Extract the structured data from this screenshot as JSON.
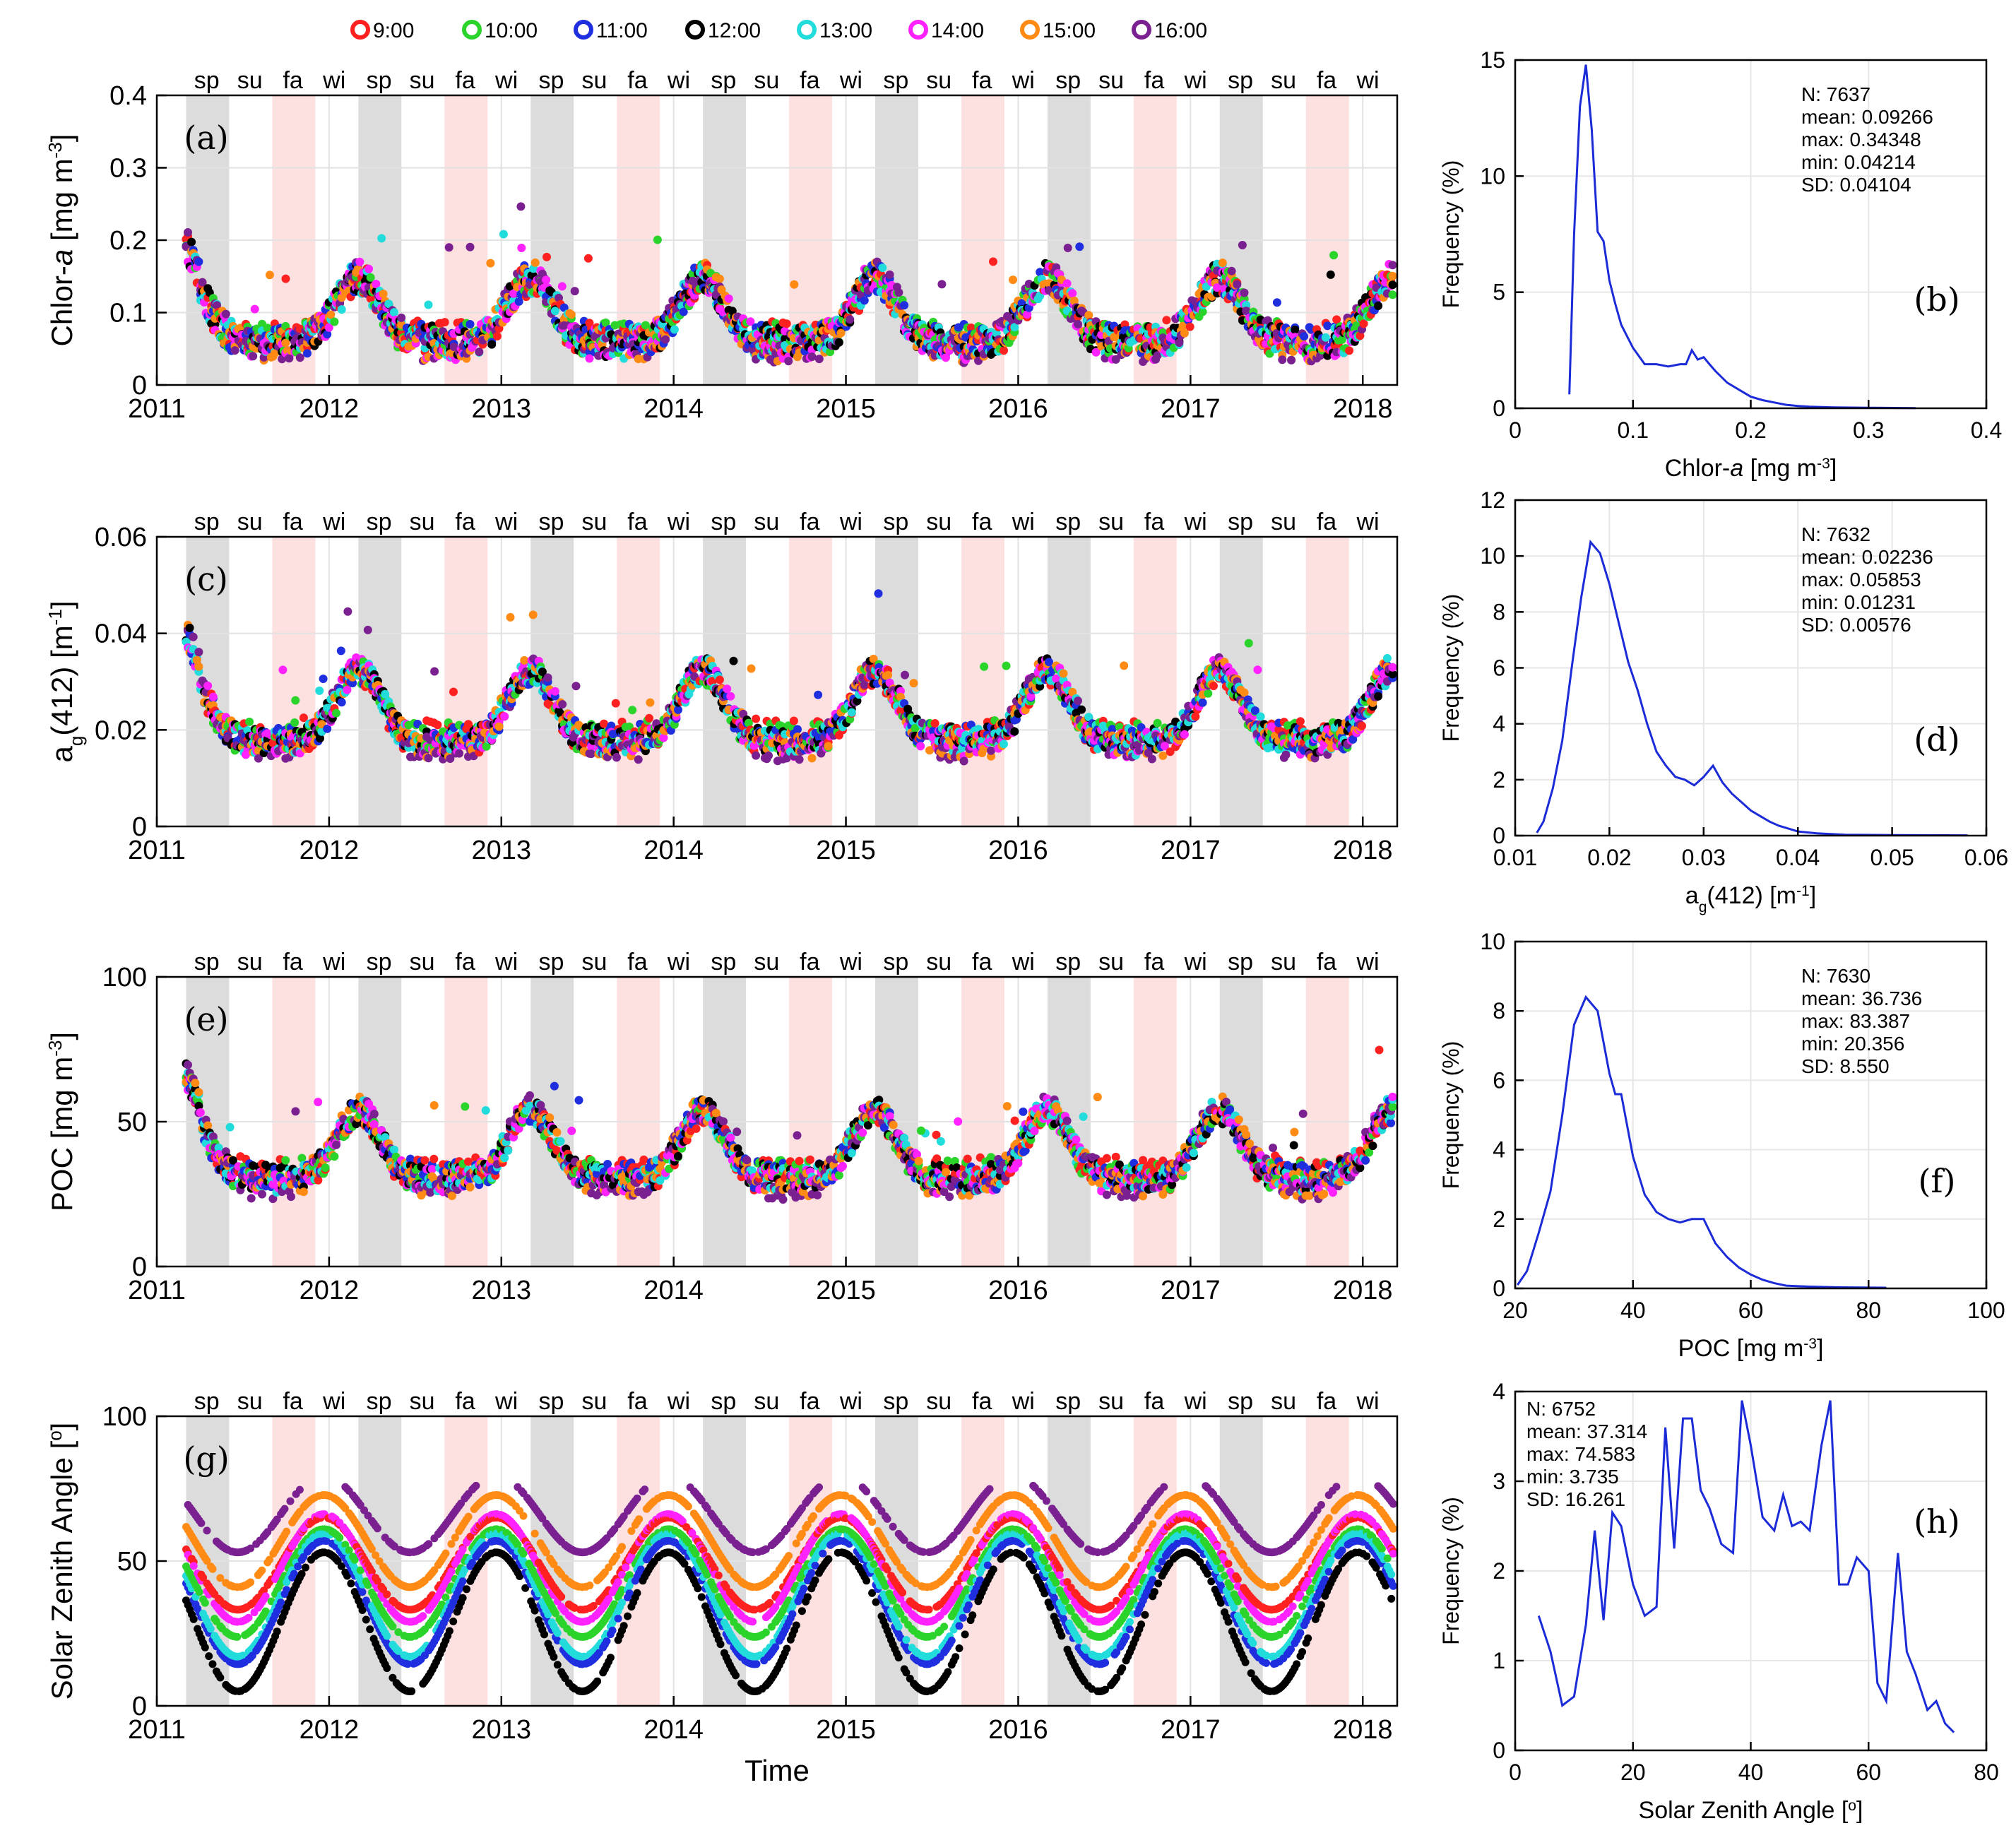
{
  "legend": [
    {
      "label": "9:00",
      "color": "#ff2020"
    },
    {
      "label": "10:00",
      "color": "#2ad42a"
    },
    {
      "label": "11:00",
      "color": "#1f2fe0"
    },
    {
      "label": "12:00",
      "color": "#000000"
    },
    {
      "label": "13:00",
      "color": "#22dcdc"
    },
    {
      "label": "14:00",
      "color": "#ff22ff"
    },
    {
      "label": "15:00",
      "color": "#ff8a14"
    },
    {
      "label": "16:00",
      "color": "#7a2090"
    }
  ],
  "season_labels": [
    "sp",
    "su",
    "fa",
    "wi",
    "sp",
    "su",
    "fa",
    "wi",
    "sp",
    "su",
    "fa",
    "wi",
    "sp",
    "su",
    "fa",
    "wi",
    "sp",
    "su",
    "fa",
    "wi",
    "sp",
    "su",
    "fa",
    "wi",
    "sp",
    "su",
    "fa",
    "wi"
  ],
  "time_axis": {
    "xlim": [
      2011.0,
      2018.2
    ],
    "ticks": [
      2011,
      2012,
      2013,
      2014,
      2015,
      2016,
      2017,
      2018
    ],
    "tick_labels": [
      "2011",
      "2012",
      "2013",
      "2014",
      "2015",
      "2016",
      "2017",
      "2018"
    ],
    "xlabel": "Time",
    "spring_fraction": [
      0.17,
      0.42
    ],
    "fall_fraction": [
      0.67,
      0.92
    ],
    "spring_color": "#dcdcdc",
    "fall_color": "#fde0e0"
  },
  "chart_data": [
    {
      "id": "a",
      "panel_label": "(a)",
      "type": "scatter",
      "ylabel_main": "Chlor-",
      "ylabel_italic": "a",
      "ylabel_unit": " [mg m",
      "ylabel_sup": "-3",
      "ylabel_end": "]",
      "ylim": [
        0,
        0.4
      ],
      "yticks": [
        0,
        0.1,
        0.2,
        0.3,
        0.4
      ],
      "ytick_labels": [
        "0",
        "0.1",
        "0.2",
        "0.3",
        "0.4"
      ],
      "model": {
        "base": 0.058,
        "amp": 0.09,
        "peak": 0.17,
        "spread": 0.022,
        "hour_shift": 0.002
      }
    },
    {
      "id": "c",
      "panel_label": "(c)",
      "type": "scatter",
      "ylabel_main": "a",
      "ylabel_sub": "g",
      "ylabel_rest": "(412) [m",
      "ylabel_sup": "-1",
      "ylabel_end": "]",
      "ylim": [
        0,
        0.06
      ],
      "yticks": [
        0,
        0.02,
        0.04,
        0.06
      ],
      "ytick_labels": [
        "0",
        "0.02",
        "0.04",
        "0.06"
      ],
      "model": {
        "base": 0.0175,
        "amp": 0.015,
        "peak": 0.17,
        "spread": 0.0028,
        "hour_shift": 0.0004
      }
    },
    {
      "id": "e",
      "panel_label": "(e)",
      "type": "scatter",
      "ylabel_main": "POC [mg m",
      "ylabel_sup": "-3",
      "ylabel_end": "]",
      "ylim": [
        0,
        100
      ],
      "yticks": [
        0,
        50,
        100
      ],
      "ytick_labels": [
        "0",
        "50",
        "100"
      ],
      "model": {
        "base": 30,
        "amp": 24,
        "peak": 0.17,
        "spread": 4.5,
        "hour_shift": 0.8
      }
    },
    {
      "id": "g",
      "panel_label": "(g)",
      "type": "scatter",
      "ylabel_main": "Solar Zenith Angle [",
      "ylabel_sup": "o",
      "ylabel_end": "]",
      "ylim": [
        0,
        100
      ],
      "yticks": [
        0,
        50,
        100
      ],
      "ytick_labels": [
        "0",
        "50",
        "100"
      ],
      "model": {
        "noon_min": 5,
        "noon_max": 53,
        "hour_step": 12
      }
    },
    {
      "id": "b",
      "panel_label": "(b)",
      "type": "line",
      "xlabel_main": "Chlor-",
      "xlabel_italic": "a",
      "xlabel_unit": " [mg m",
      "xlabel_sup": "-3",
      "xlabel_end": "]",
      "ylabel": "Frequency (%)",
      "xlim": [
        0,
        0.4
      ],
      "ylim": [
        0,
        15
      ],
      "xticks": [
        0,
        0.1,
        0.2,
        0.3,
        0.4
      ],
      "xtick_labels": [
        "0",
        "0.1",
        "0.2",
        "0.3",
        "0.4"
      ],
      "yticks": [
        0,
        5,
        10,
        15
      ],
      "ytick_labels": [
        "0",
        "5",
        "10",
        "15"
      ],
      "stats": [
        "N: 7637",
        "mean: 0.09266",
        "max: 0.34348",
        "min: 0.04214",
        "SD: 0.04104"
      ],
      "x": [
        0.046,
        0.05,
        0.055,
        0.06,
        0.065,
        0.07,
        0.075,
        0.08,
        0.085,
        0.09,
        0.095,
        0.1,
        0.11,
        0.12,
        0.13,
        0.14,
        0.145,
        0.15,
        0.155,
        0.16,
        0.165,
        0.17,
        0.18,
        0.19,
        0.2,
        0.21,
        0.22,
        0.23,
        0.24,
        0.25,
        0.27,
        0.3,
        0.34
      ],
      "y": [
        0.6,
        7.5,
        13,
        14.8,
        12,
        7.6,
        7.2,
        5.5,
        4.5,
        3.6,
        3.1,
        2.6,
        1.9,
        1.9,
        1.8,
        1.9,
        1.9,
        2.5,
        2.1,
        2.2,
        1.9,
        1.6,
        1.1,
        0.8,
        0.5,
        0.35,
        0.25,
        0.15,
        0.1,
        0.07,
        0.04,
        0.02,
        0.01
      ]
    },
    {
      "id": "d",
      "panel_label": "(d)",
      "type": "line",
      "xlabel_main": "a",
      "xlabel_sub": "g",
      "xlabel_rest": "(412) [m",
      "xlabel_sup": "-1",
      "xlabel_end": "]",
      "ylabel": "Frequency (%)",
      "xlim": [
        0.01,
        0.06
      ],
      "ylim": [
        0,
        12
      ],
      "xticks": [
        0.01,
        0.02,
        0.03,
        0.04,
        0.05,
        0.06
      ],
      "xtick_labels": [
        "0.01",
        "0.02",
        "0.03",
        "0.04",
        "0.05",
        "0.06"
      ],
      "yticks": [
        0,
        2,
        4,
        6,
        8,
        10,
        12
      ],
      "ytick_labels": [
        "0",
        "2",
        "4",
        "6",
        "8",
        "10",
        "12"
      ],
      "stats": [
        "N: 7632",
        "mean: 0.02236",
        "max: 0.05853",
        "min: 0.01231",
        "SD: 0.00576"
      ],
      "x": [
        0.0123,
        0.013,
        0.014,
        0.015,
        0.016,
        0.017,
        0.018,
        0.019,
        0.02,
        0.021,
        0.022,
        0.023,
        0.024,
        0.025,
        0.026,
        0.027,
        0.028,
        0.029,
        0.03,
        0.031,
        0.032,
        0.033,
        0.034,
        0.035,
        0.036,
        0.037,
        0.038,
        0.039,
        0.04,
        0.042,
        0.045,
        0.05,
        0.058
      ],
      "y": [
        0.1,
        0.5,
        1.7,
        3.4,
        6.0,
        8.5,
        10.5,
        10.1,
        9.0,
        7.6,
        6.2,
        5.2,
        4.0,
        3.0,
        2.5,
        2.1,
        2.0,
        1.8,
        2.1,
        2.5,
        1.9,
        1.5,
        1.2,
        0.9,
        0.7,
        0.5,
        0.35,
        0.25,
        0.15,
        0.08,
        0.03,
        0.02,
        0.01
      ]
    },
    {
      "id": "f",
      "panel_label": "(f)",
      "type": "line",
      "xlabel_main": "POC [mg m",
      "xlabel_sup": "-3",
      "xlabel_end": "]",
      "ylabel": "Frequency (%)",
      "xlim": [
        20,
        100
      ],
      "ylim": [
        0,
        10
      ],
      "xticks": [
        20,
        40,
        60,
        80,
        100
      ],
      "xtick_labels": [
        "20",
        "40",
        "60",
        "80",
        "100"
      ],
      "yticks": [
        0,
        2,
        4,
        6,
        8,
        10
      ],
      "ytick_labels": [
        "0",
        "2",
        "4",
        "6",
        "8",
        "10"
      ],
      "stats": [
        "N: 7630",
        "mean: 36.736",
        "max: 83.387",
        "min: 20.356",
        "SD: 8.550"
      ],
      "x": [
        20.4,
        22,
        24,
        26,
        28,
        30,
        32,
        34,
        36,
        37,
        38,
        40,
        42,
        44,
        46,
        48,
        50,
        52,
        54,
        56,
        58,
        60,
        62,
        64,
        66,
        70,
        75,
        83
      ],
      "y": [
        0.1,
        0.5,
        1.6,
        2.8,
        5.0,
        7.6,
        8.4,
        8.0,
        6.2,
        5.6,
        5.6,
        3.8,
        2.7,
        2.2,
        2.0,
        1.9,
        2.0,
        2.0,
        1.3,
        0.9,
        0.6,
        0.4,
        0.25,
        0.15,
        0.08,
        0.05,
        0.03,
        0.02
      ]
    },
    {
      "id": "h",
      "panel_label": "(h)",
      "type": "line",
      "xlabel_main": "Solar Zenith Angle [",
      "xlabel_sup": "o",
      "xlabel_end": "]",
      "ylabel": "Frequency (%)",
      "xlim": [
        0,
        80
      ],
      "ylim": [
        0,
        4
      ],
      "xticks": [
        0,
        20,
        40,
        60,
        80
      ],
      "xtick_labels": [
        "0",
        "20",
        "40",
        "60",
        "80"
      ],
      "yticks": [
        0,
        1,
        2,
        3,
        4
      ],
      "ytick_labels": [
        "0",
        "1",
        "2",
        "3",
        "4"
      ],
      "stats": [
        "N: 6752",
        "mean: 37.314",
        "max: 74.583",
        "min: 3.735",
        "SD: 16.261"
      ],
      "x": [
        4,
        6,
        8,
        10,
        12,
        13.5,
        15,
        16.5,
        18,
        20,
        22,
        24,
        25.5,
        27,
        28.5,
        30,
        31.5,
        33,
        35,
        37,
        38.5,
        40,
        42,
        44,
        45.5,
        47,
        48.5,
        50,
        52,
        53.5,
        55,
        56.5,
        58,
        60,
        61.5,
        63,
        65,
        66.5,
        68,
        70,
        71.5,
        73,
        74.5
      ],
      "y": [
        1.5,
        1.1,
        0.5,
        0.6,
        1.4,
        2.45,
        1.45,
        2.65,
        2.5,
        1.85,
        1.5,
        1.6,
        3.6,
        2.25,
        3.7,
        3.7,
        2.9,
        2.7,
        2.3,
        2.2,
        3.9,
        3.4,
        2.6,
        2.45,
        2.85,
        2.5,
        2.55,
        2.45,
        3.4,
        3.9,
        1.85,
        1.85,
        2.15,
        2.0,
        0.75,
        0.55,
        2.2,
        1.1,
        0.85,
        0.45,
        0.55,
        0.3,
        0.2
      ]
    }
  ]
}
